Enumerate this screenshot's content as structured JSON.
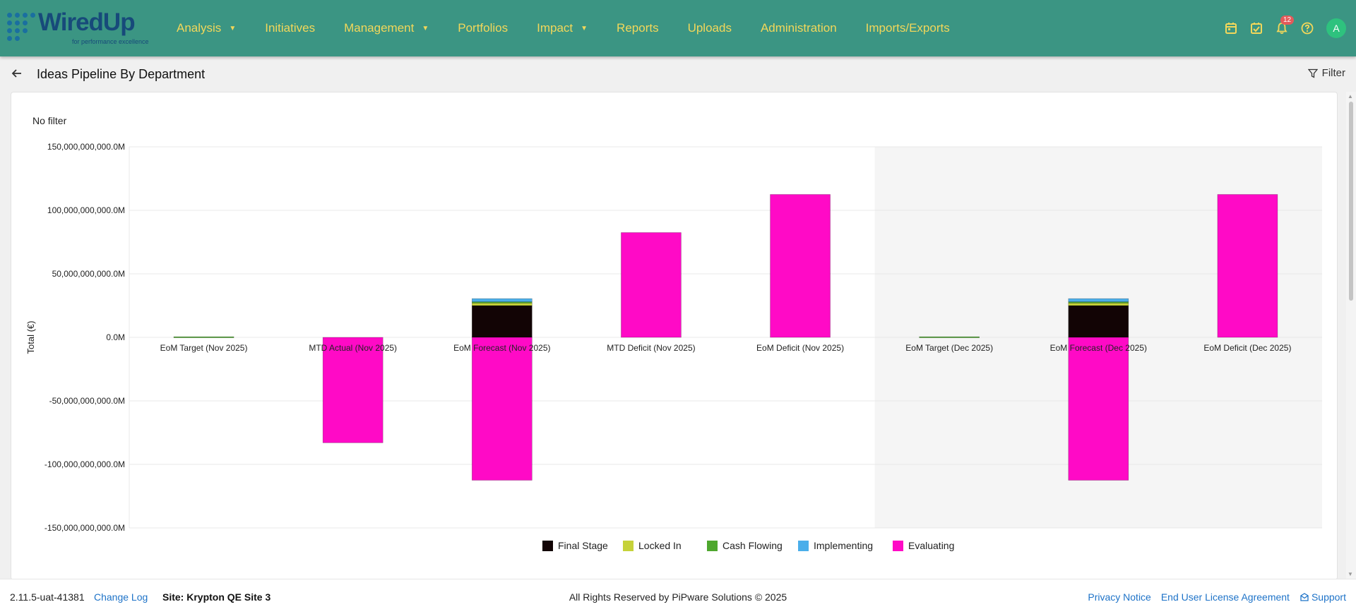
{
  "brand": {
    "name": "WiredUp",
    "tagline": "for performance excellence",
    "dot_color": "#1a6fa0"
  },
  "nav": {
    "items": [
      {
        "label": "Analysis",
        "dropdown": true
      },
      {
        "label": "Initiatives",
        "dropdown": false
      },
      {
        "label": "Management",
        "dropdown": true
      },
      {
        "label": "Portfolios",
        "dropdown": false
      },
      {
        "label": "Impact",
        "dropdown": true
      },
      {
        "label": "Reports",
        "dropdown": false
      },
      {
        "label": "Uploads",
        "dropdown": false
      },
      {
        "label": "Administration",
        "dropdown": false
      },
      {
        "label": "Imports/Exports",
        "dropdown": false
      }
    ],
    "icons": [
      "calendar-icon",
      "calendar-check-icon",
      "bell-icon",
      "help-icon"
    ],
    "notification_count": "12",
    "avatar_initial": "A"
  },
  "page": {
    "title": "Ideas Pipeline By Department",
    "filter_label": "Filter",
    "filter_status": "No filter"
  },
  "colors": {
    "header_bg": "#3b9583",
    "nav_text": "#f2d75a",
    "avatar": "#2ec27e",
    "badge": "#e35a5a",
    "link": "#1e73c8"
  },
  "chart_data": {
    "type": "bar",
    "stacked": true,
    "ylabel": "Total (€)",
    "ylim": [
      -150000000000,
      150000000000
    ],
    "yticks": [
      150000000000,
      100000000000,
      50000000000,
      0,
      -50000000000,
      -100000000000,
      -150000000000
    ],
    "ytick_labels": [
      "150,000,000,000.0M",
      "100,000,000,000.0M",
      "50,000,000,000.0M",
      "0.0M",
      "-50,000,000,000.0M",
      "-100,000,000,000.0M",
      "-150,000,000,000.0M"
    ],
    "categories": [
      "EoM Target (Nov 2025)",
      "MTD Actual (Nov 2025)",
      "EoM Forecast (Nov 2025)",
      "MTD Deficit (Nov 2025)",
      "EoM Deficit (Nov 2025)",
      "EoM Target (Dec 2025)",
      "EoM Forecast (Dec 2025)",
      "EoM Deficit (Dec 2025)"
    ],
    "highlighted_categories": [
      "EoM Target (Dec 2025)",
      "EoM Forecast (Dec 2025)",
      "EoM Deficit (Dec 2025)"
    ],
    "highlight_band_color": "#f5f5f5",
    "grid": true,
    "legend_position": "bottom-center",
    "series": [
      {
        "name": "Final Stage",
        "color": "#120405",
        "values": [
          0,
          0,
          25000000000,
          0,
          0,
          0,
          25000000000,
          0
        ]
      },
      {
        "name": "Locked In",
        "color": "#c6d23a",
        "values": [
          0,
          0,
          2000000000,
          0,
          0,
          0,
          2000000000,
          0
        ]
      },
      {
        "name": "Cash Flowing",
        "color": "#4ea72e",
        "values": [
          500000000,
          0,
          1000000000,
          0,
          0,
          500000000,
          1000000000,
          0
        ]
      },
      {
        "name": "Implementing",
        "color": "#4aaeea",
        "values": [
          0,
          0,
          2500000000,
          0,
          0,
          0,
          2500000000,
          0
        ]
      },
      {
        "name": "Evaluating",
        "color": "#ff0ac6",
        "values": [
          0,
          -83000000000,
          -112500000000,
          82500000000,
          112500000000,
          0,
          -112500000000,
          112500000000
        ]
      }
    ]
  },
  "footer": {
    "version": "2.11.5-uat-41381",
    "changelog": "Change Log",
    "site": "Site: Krypton QE Site 3",
    "rights": "All Rights Reserved by PiPware Solutions © 2025",
    "privacy": "Privacy Notice",
    "eula": "End User License Agreement",
    "support": "Support"
  }
}
